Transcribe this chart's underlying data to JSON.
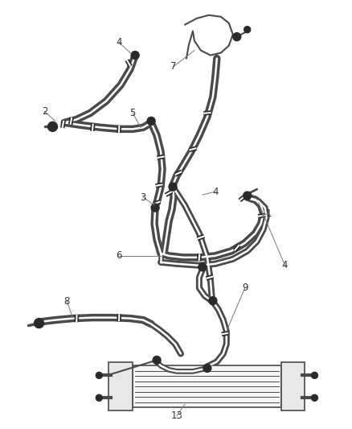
{
  "background_color": "#ffffff",
  "line_color": "#4a4a4a",
  "label_color": "#333333",
  "figsize": [
    4.38,
    5.33
  ],
  "dpi": 100,
  "lw_hose": 1.8,
  "lw_hose_thin": 1.1,
  "lw_label": 0.7,
  "label_fontsize": 8.5,
  "clamp_color": "#2a2a2a",
  "connector_color": "#2a2a2a"
}
